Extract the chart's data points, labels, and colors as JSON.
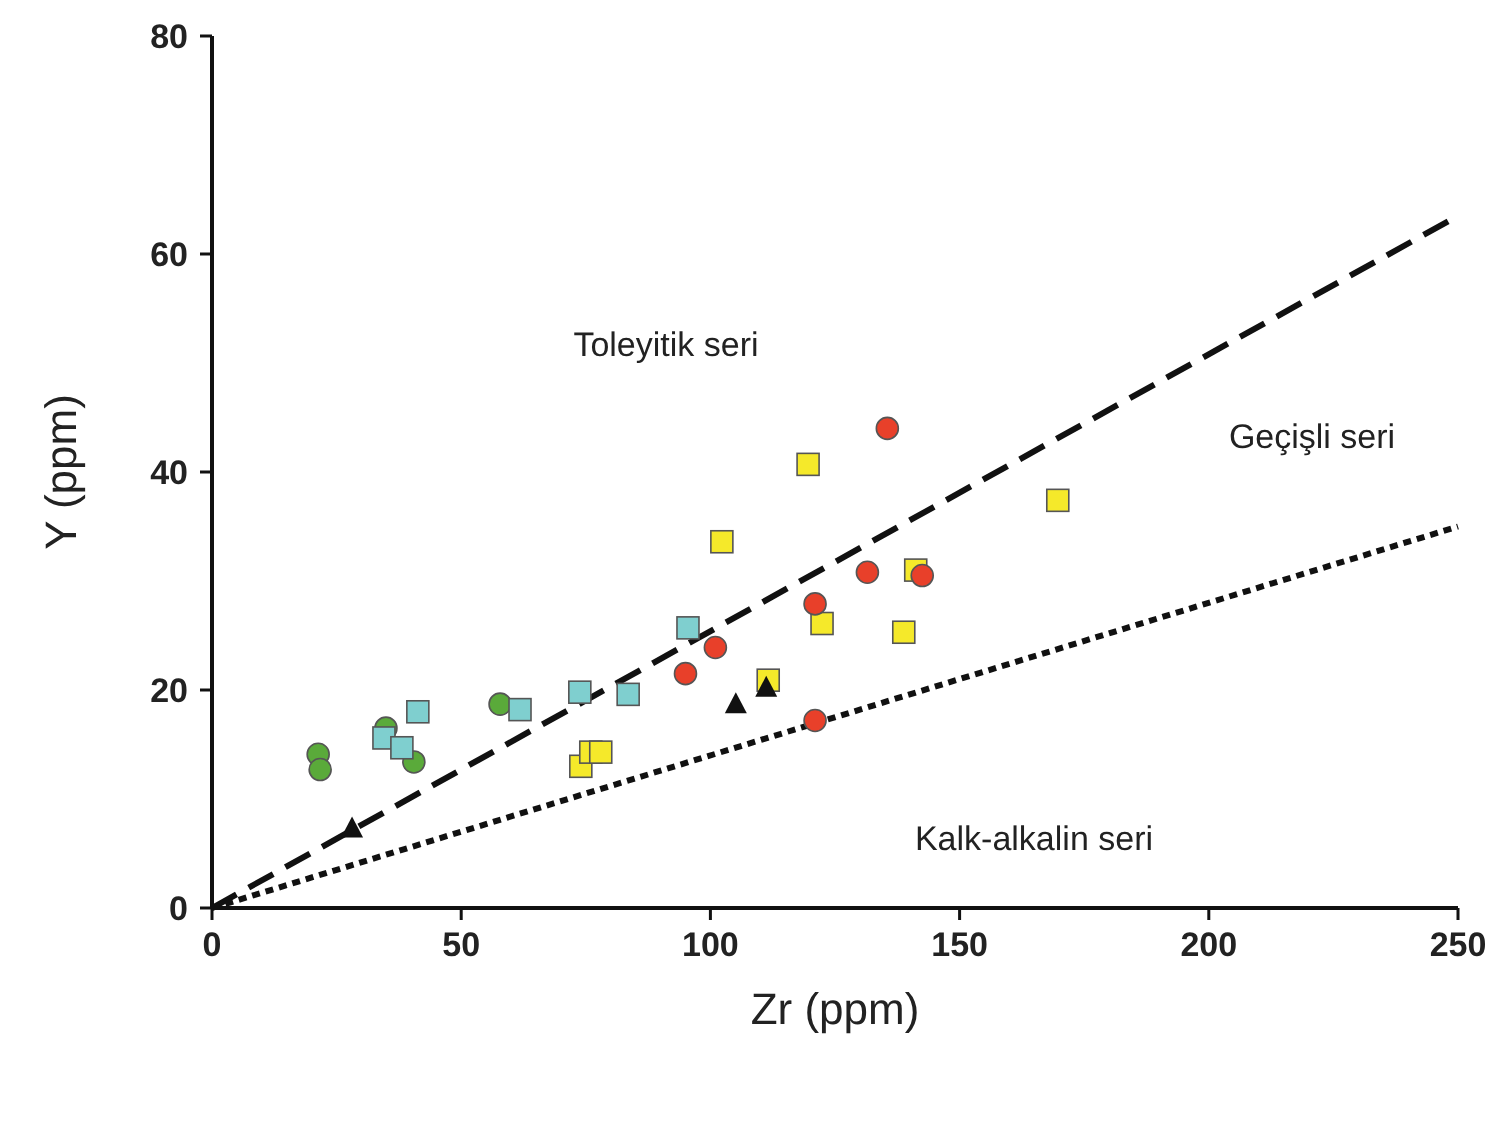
{
  "chart_data": {
    "type": "scatter",
    "xlabel": "Zr (ppm)",
    "ylabel": "Y (ppm)",
    "xlim": [
      0,
      250
    ],
    "ylim": [
      0,
      80
    ],
    "xticks": [
      0,
      50,
      100,
      150,
      200,
      250
    ],
    "yticks": [
      0,
      20,
      40,
      60,
      80
    ],
    "grid": false,
    "series": [
      {
        "type": "line",
        "color": "#111111",
        "line_style": "dashed",
        "marker": "none",
        "x": [
          0,
          250
        ],
        "values": [
          0,
          63.5
        ]
      },
      {
        "type": "line",
        "color": "#111111",
        "line_style": "dotted",
        "marker": "none",
        "x": [
          0,
          250
        ],
        "values": [
          0,
          35
        ]
      },
      {
        "color": "#5aaa3a",
        "marker": "circle",
        "x": [
          21.3,
          21.7,
          34.9,
          40.5,
          57.8
        ],
        "values": [
          14.1,
          12.7,
          16.5,
          13.4,
          18.7
        ]
      },
      {
        "color": "#7fcfcf",
        "marker": "square",
        "x": [
          34.5,
          38.1,
          41.3,
          61.8,
          73.8,
          83.5,
          95.5
        ],
        "values": [
          15.6,
          14.7,
          18.0,
          18.2,
          19.8,
          19.6,
          25.7
        ]
      },
      {
        "color": "#f5e92a",
        "marker": "square",
        "x": [
          74,
          76,
          78,
          119.6,
          102.3,
          169.7,
          141.2,
          122.4,
          138.8,
          111.6
        ],
        "values": [
          13.0,
          14.3,
          14.3,
          40.7,
          33.6,
          37.4,
          31.0,
          26.1,
          25.3,
          20.9
        ]
      },
      {
        "color": "#e8402a",
        "marker": "circle",
        "x": [
          95,
          101,
          121,
          121,
          131.5,
          142.5,
          135.5
        ],
        "values": [
          21.5,
          23.9,
          17.2,
          27.9,
          30.8,
          30.5,
          44.0
        ]
      },
      {
        "color": "#111111",
        "marker": "triangle",
        "x": [
          28.1,
          105.1,
          111.2
        ],
        "values": [
          7.3,
          18.7,
          20.2
        ]
      }
    ],
    "annotations": [
      "Toleyitik seri",
      "Geçişli seri",
      "Kalk-alkalin seri"
    ]
  }
}
